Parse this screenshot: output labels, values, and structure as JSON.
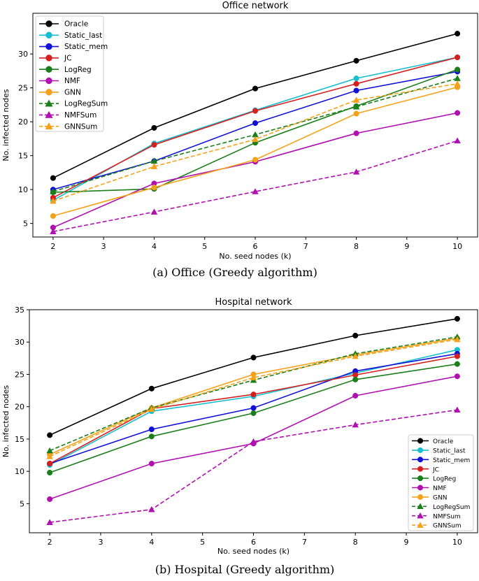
{
  "chart_data": [
    {
      "type": "line",
      "title": "Office network",
      "xlabel": "No. seed nodes (k)",
      "ylabel": "No. infected nodes",
      "caption": "(a) Office (Greedy algorithm)",
      "xlim": [
        1.6,
        10.4
      ],
      "ylim": [
        3,
        36
      ],
      "x_ticks": [
        2,
        3,
        4,
        5,
        6,
        7,
        8,
        9,
        10
      ],
      "y_ticks": [
        5,
        10,
        15,
        20,
        25,
        30
      ],
      "legend_position": "top-left",
      "x": [
        2,
        4,
        6,
        8,
        10
      ],
      "series": [
        {
          "name": "Oracle",
          "color": "#000000",
          "marker": "circle",
          "dashed": false,
          "values": [
            11.7,
            19.1,
            24.9,
            29.0,
            33.0
          ]
        },
        {
          "name": "Static_last",
          "color": "#17becf",
          "marker": "circle",
          "dashed": false,
          "values": [
            8.4,
            16.8,
            21.7,
            26.4,
            29.5
          ]
        },
        {
          "name": "Static_mem",
          "color": "#1010d8",
          "marker": "circle",
          "dashed": false,
          "values": [
            10.0,
            14.2,
            19.8,
            24.6,
            27.4
          ]
        },
        {
          "name": "JC",
          "color": "#d62020",
          "marker": "circle",
          "dashed": false,
          "values": [
            8.8,
            16.6,
            21.6,
            25.6,
            29.5
          ]
        },
        {
          "name": "LogReg",
          "color": "#1a7f1a",
          "marker": "circle",
          "dashed": false,
          "values": [
            9.6,
            10.1,
            16.9,
            22.3,
            27.7
          ]
        },
        {
          "name": "NMF",
          "color": "#b010b0",
          "marker": "circle",
          "dashed": false,
          "values": [
            4.4,
            10.9,
            14.1,
            18.3,
            21.3
          ]
        },
        {
          "name": "GNN",
          "color": "#f5a21a",
          "marker": "circle",
          "dashed": false,
          "values": [
            6.1,
            10.3,
            14.4,
            21.2,
            25.1
          ]
        },
        {
          "name": "LogRegSum",
          "color": "#1a7f1a",
          "marker": "triangle",
          "dashed": true,
          "values": [
            9.7,
            14.2,
            18.1,
            22.2,
            26.4
          ]
        },
        {
          "name": "NMFSum",
          "color": "#b010b0",
          "marker": "triangle",
          "dashed": true,
          "values": [
            3.8,
            6.7,
            9.7,
            12.6,
            17.2
          ]
        },
        {
          "name": "GNNSum",
          "color": "#f5a21a",
          "marker": "triangle",
          "dashed": true,
          "values": [
            8.3,
            13.4,
            17.4,
            23.2,
            25.6
          ]
        }
      ]
    },
    {
      "type": "line",
      "title": "Hospital network",
      "xlabel": "No. seed nodes (k)",
      "ylabel": "No. infected nodes",
      "caption": "(b) Hospital (Greedy algorithm)",
      "xlim": [
        1.6,
        10.4
      ],
      "ylim": [
        0.5,
        35
      ],
      "x_ticks": [
        2,
        3,
        4,
        5,
        6,
        7,
        8,
        9,
        10
      ],
      "y_ticks": [
        5,
        10,
        15,
        20,
        25,
        30,
        35
      ],
      "legend_position": "bottom-right",
      "x": [
        2,
        4,
        6,
        8,
        10
      ],
      "series": [
        {
          "name": "Oracle",
          "color": "#000000",
          "marker": "circle",
          "dashed": false,
          "values": [
            15.6,
            22.8,
            27.6,
            31.0,
            33.6
          ]
        },
        {
          "name": "Static_last",
          "color": "#17becf",
          "marker": "circle",
          "dashed": false,
          "values": [
            11.0,
            19.3,
            21.6,
            25.2,
            28.8
          ]
        },
        {
          "name": "Static_mem",
          "color": "#1010d8",
          "marker": "circle",
          "dashed": false,
          "values": [
            11.2,
            16.5,
            19.8,
            25.5,
            28.2
          ]
        },
        {
          "name": "JC",
          "color": "#d62020",
          "marker": "circle",
          "dashed": false,
          "values": [
            11.2,
            19.7,
            21.9,
            24.9,
            27.8
          ]
        },
        {
          "name": "LogReg",
          "color": "#1a7f1a",
          "marker": "circle",
          "dashed": false,
          "values": [
            9.8,
            15.4,
            19.0,
            24.2,
            26.6
          ]
        },
        {
          "name": "NMF",
          "color": "#b010b0",
          "marker": "circle",
          "dashed": false,
          "values": [
            5.7,
            11.2,
            14.3,
            21.7,
            24.7
          ]
        },
        {
          "name": "GNN",
          "color": "#f5a21a",
          "marker": "circle",
          "dashed": false,
          "values": [
            12.6,
            19.8,
            25.0,
            28.0,
            30.6
          ]
        },
        {
          "name": "LogRegSum",
          "color": "#1a7f1a",
          "marker": "triangle",
          "dashed": true,
          "values": [
            13.2,
            19.8,
            24.1,
            28.2,
            30.8
          ]
        },
        {
          "name": "NMFSum",
          "color": "#b010b0",
          "marker": "triangle",
          "dashed": true,
          "values": [
            2.1,
            4.1,
            14.6,
            17.2,
            19.5
          ]
        },
        {
          "name": "GNNSum",
          "color": "#f5a21a",
          "marker": "triangle",
          "dashed": true,
          "values": [
            12.3,
            19.6,
            24.5,
            27.8,
            30.4
          ]
        }
      ]
    }
  ]
}
